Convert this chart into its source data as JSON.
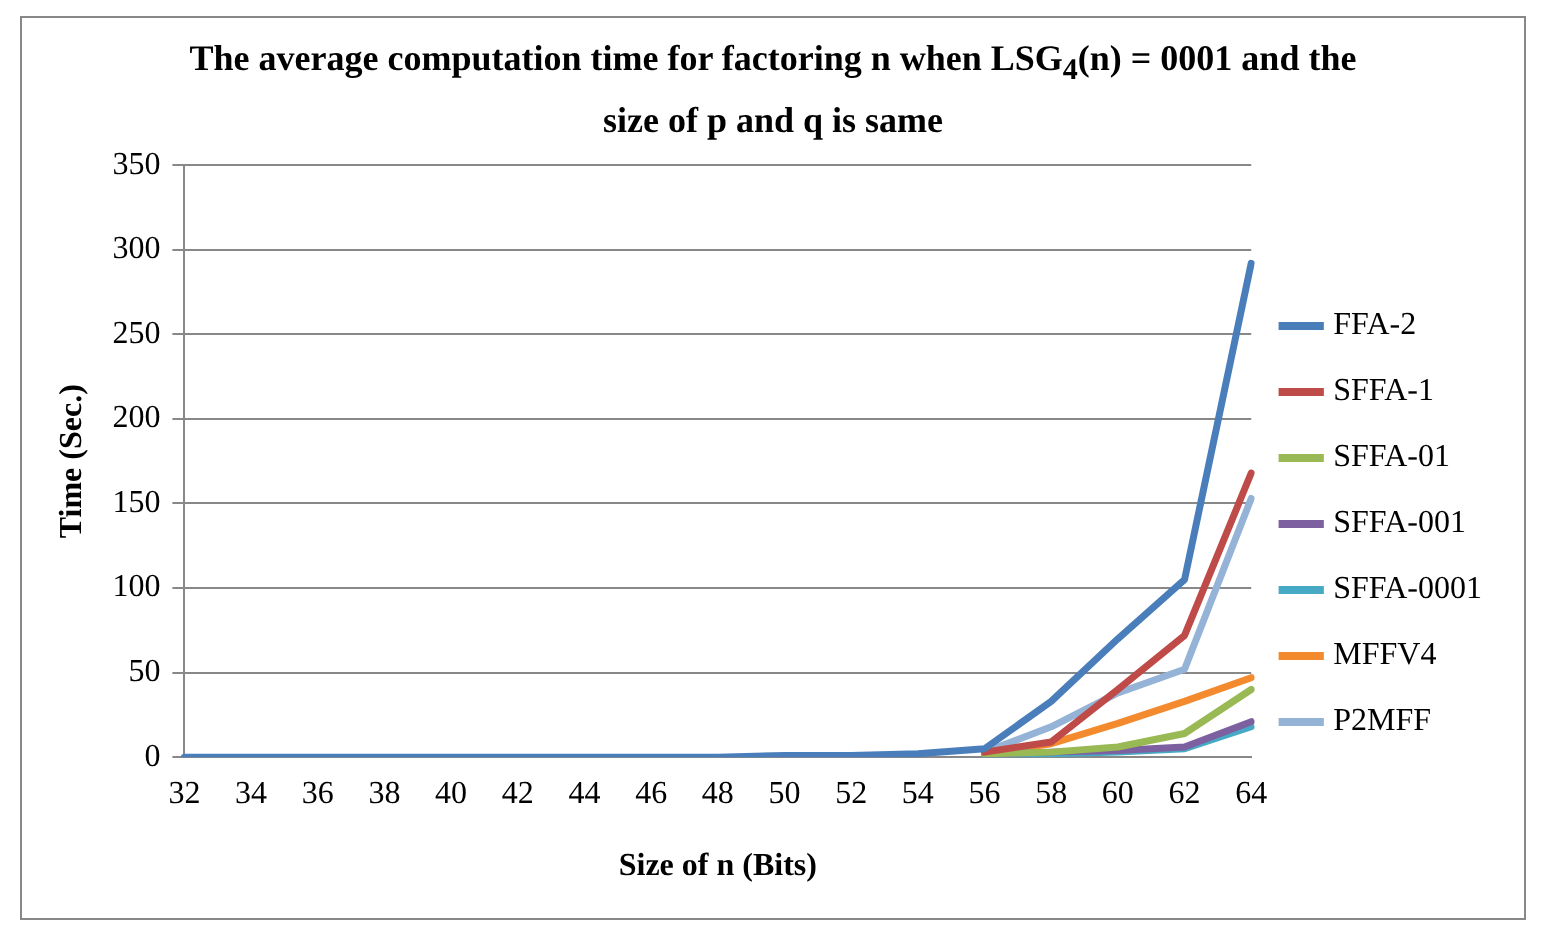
{
  "chart_data": {
    "type": "line",
    "title": "The average computation time for factoring n when LSG$_{4}$(n) = 0001 and the size of p and q is same",
    "xlabel": "Size of n (Bits)",
    "ylabel": "Time (Sec.)",
    "categories": [
      "32",
      "34",
      "36",
      "38",
      "40",
      "42",
      "44",
      "46",
      "48",
      "50",
      "52",
      "54",
      "56",
      "58",
      "60",
      "62",
      "64"
    ],
    "ylim": [
      0,
      350
    ],
    "yticks": [
      0,
      50,
      100,
      150,
      200,
      250,
      300,
      350
    ],
    "grid": "y",
    "legend": "right",
    "marker": "none",
    "line_style": "solid",
    "series": [
      {
        "name": "FFA-2",
        "color": "#4a7ebb",
        "values": [
          0,
          0,
          0,
          0,
          0,
          0,
          0,
          0,
          0,
          1,
          1,
          2,
          5,
          33,
          70,
          105,
          292
        ]
      },
      {
        "name": "SFFA-1",
        "color": "#be4b48",
        "values": [
          null,
          null,
          null,
          null,
          null,
          null,
          null,
          null,
          null,
          null,
          null,
          null,
          3,
          9,
          40,
          72,
          168
        ]
      },
      {
        "name": "SFFA-01",
        "color": "#98b954",
        "values": [
          null,
          null,
          null,
          null,
          null,
          null,
          null,
          null,
          null,
          null,
          null,
          null,
          2,
          3,
          6,
          14,
          40
        ]
      },
      {
        "name": "SFFA-001",
        "color": "#7d60a0",
        "values": [
          null,
          null,
          null,
          null,
          null,
          null,
          null,
          null,
          null,
          null,
          null,
          null,
          2,
          3,
          4,
          6,
          21
        ]
      },
      {
        "name": "SFFA-0001",
        "color": "#46aac5",
        "values": [
          null,
          null,
          null,
          null,
          null,
          null,
          null,
          null,
          null,
          null,
          null,
          null,
          1,
          2,
          3,
          5,
          18
        ]
      },
      {
        "name": "MFFV4",
        "color": "#f38a2e",
        "values": [
          null,
          null,
          null,
          null,
          null,
          null,
          null,
          null,
          null,
          null,
          null,
          null,
          2,
          8,
          20,
          33,
          47
        ]
      },
      {
        "name": "P2MFF",
        "color": "#95b3d7",
        "values": [
          null,
          null,
          null,
          null,
          null,
          null,
          null,
          null,
          null,
          null,
          null,
          null,
          3,
          18,
          38,
          52,
          153
        ]
      }
    ]
  }
}
